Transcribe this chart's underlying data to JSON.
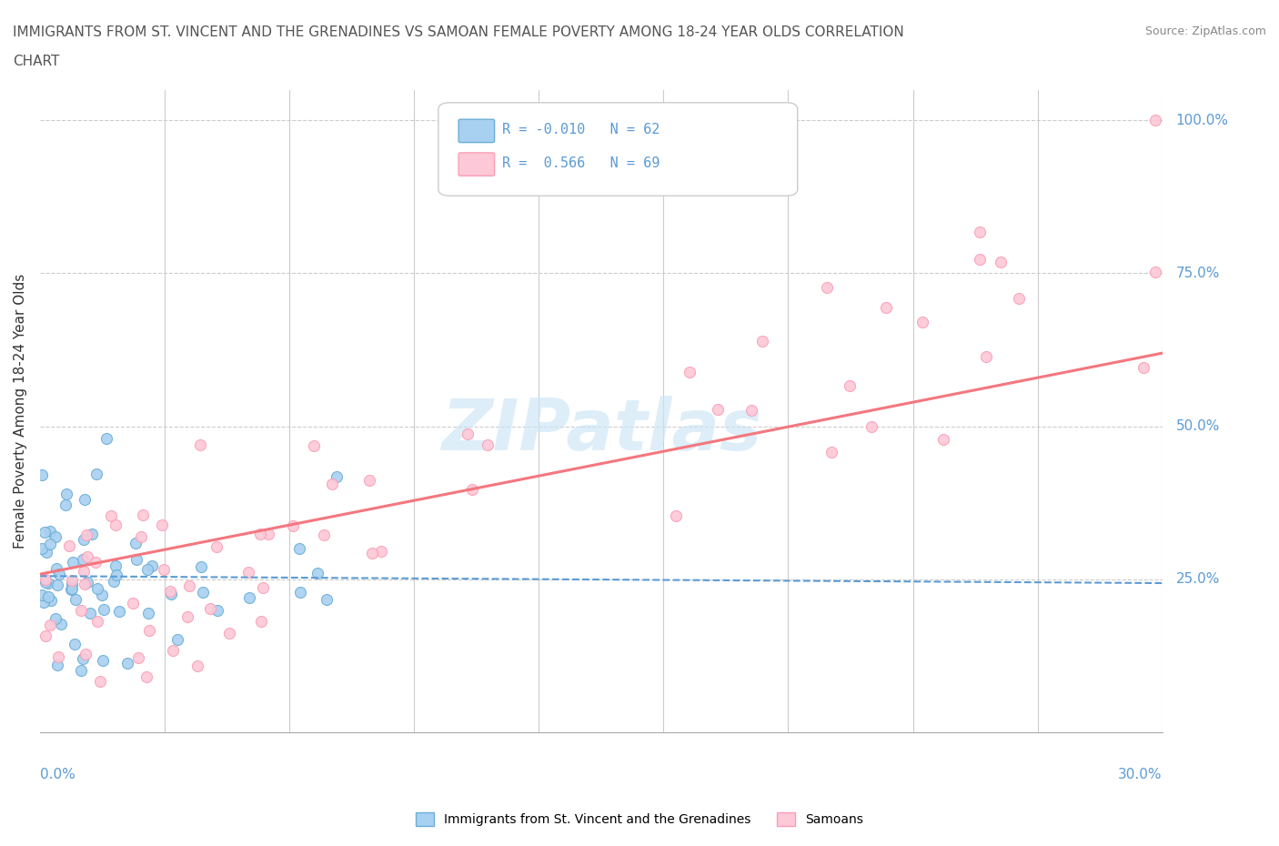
{
  "title_line1": "IMMIGRANTS FROM ST. VINCENT AND THE GRENADINES VS SAMOAN FEMALE POVERTY AMONG 18-24 YEAR OLDS CORRELATION",
  "title_line2": "CHART",
  "source": "Source: ZipAtlas.com",
  "ylabel_label": "Female Poverty Among 18-24 Year Olds",
  "blue_color": "#6baed6",
  "blue_fill": "#a8d0f0",
  "pink_color": "#fa9fb5",
  "pink_fill": "#fdc8d8",
  "trend_blue": "#5b9bd5",
  "trend_pink": "#f4777f",
  "xlim": [
    0.0,
    0.3
  ],
  "ylim": [
    0.0,
    1.05
  ],
  "grid_color": "#cccccc",
  "right_labels": {
    "100.0%": 1.0,
    "75.0%": 0.75,
    "50.0%": 0.5,
    "25.0%": 0.25
  },
  "right_label_order": [
    "100.0%",
    "75.0%",
    "50.0%",
    "25.0%"
  ]
}
